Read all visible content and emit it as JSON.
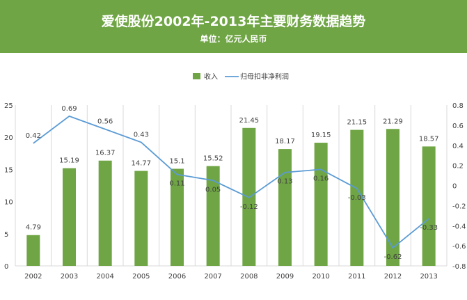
{
  "header": {
    "title": "爱使股份2002年-2013年主要财务数据趋势",
    "subtitle": "单位：亿元人民币"
  },
  "colors": {
    "header_bg": "#6fa544",
    "bar": "#6fa544",
    "line": "#5b9bd5"
  },
  "chart_data": {
    "type": "bar",
    "categories": [
      "2002",
      "2003",
      "2004",
      "2005",
      "2006",
      "2007",
      "2008",
      "2009",
      "2010",
      "2011",
      "2012",
      "2013"
    ],
    "series": [
      {
        "name": "收入",
        "type": "bar",
        "axis": "left",
        "values": [
          4.79,
          15.19,
          16.37,
          14.77,
          15.1,
          15.52,
          21.45,
          18.17,
          19.15,
          21.15,
          21.29,
          18.57
        ]
      },
      {
        "name": "归母扣非净利润",
        "type": "line",
        "axis": "right",
        "values": [
          0.42,
          0.69,
          0.56,
          0.43,
          0.11,
          0.05,
          -0.12,
          0.13,
          0.16,
          -0.03,
          -0.62,
          -0.33
        ]
      }
    ],
    "y_left": {
      "min": 0,
      "max": 25,
      "ticks": [
        0,
        5,
        10,
        15,
        20,
        25
      ]
    },
    "y_right": {
      "min": -0.8,
      "max": 0.8,
      "ticks": [
        "0.8",
        "0.6",
        "0.4",
        "0.2",
        "0",
        "-0.2",
        "-0.4",
        "-0.6",
        "-0.8"
      ]
    },
    "legend": [
      "收入",
      "归母扣非净利润"
    ],
    "legend_position": "top",
    "grid": "vertical"
  }
}
